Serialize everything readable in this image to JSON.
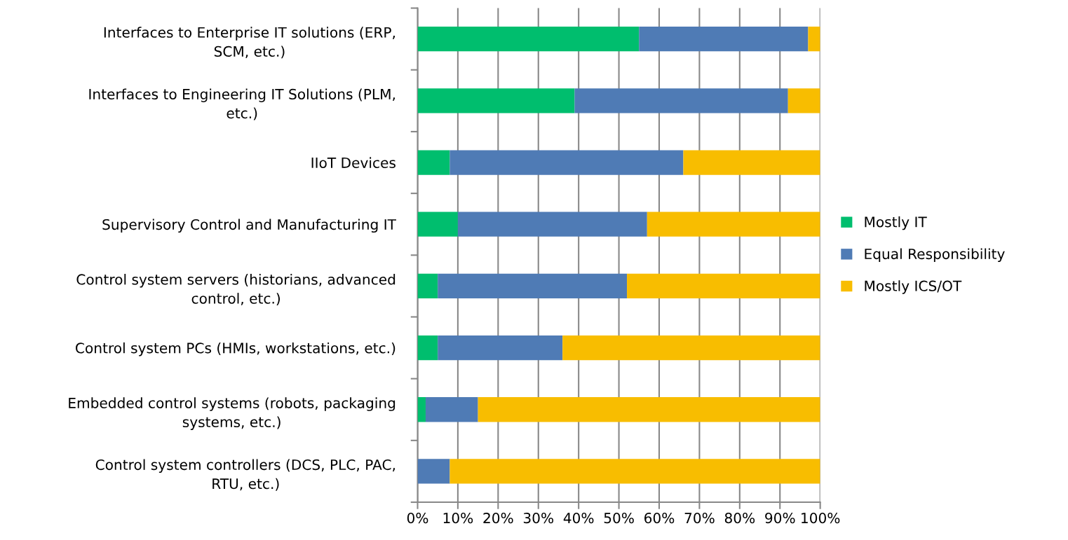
{
  "chart_data": {
    "type": "bar",
    "orientation": "horizontal",
    "stacked": true,
    "categories": [
      "Interfaces to Enterprise IT solutions (ERP,\nSCM, etc.)",
      "Interfaces to Engineering IT Solutions (PLM,\netc.)",
      "IIoT Devices",
      "Supervisory Control and Manufacturing IT",
      "Control system servers (historians, advanced\ncontrol, etc.)",
      "Control system PCs (HMIs, workstations, etc.)",
      "Embedded control systems (robots, packaging\nsystems, etc.)",
      "Control system controllers (DCS, PLC, PAC,\nRTU, etc.)"
    ],
    "series": [
      {
        "name": "Mostly IT",
        "color": "#00be6e",
        "values": [
          55,
          39,
          8,
          10,
          5,
          5,
          2,
          0
        ]
      },
      {
        "name": "Equal Responsibility",
        "color": "#4f7bb5",
        "values": [
          42,
          53,
          58,
          47,
          47,
          31,
          13,
          8
        ]
      },
      {
        "name": "Mostly ICS/OT",
        "color": "#f8bd00",
        "values": [
          3,
          8,
          34,
          43,
          48,
          64,
          85,
          92
        ]
      }
    ],
    "xlim": [
      0,
      100
    ],
    "xticks": [
      {
        "value": 0,
        "label": "0%"
      },
      {
        "value": 10,
        "label": "10%"
      },
      {
        "value": 20,
        "label": "20%"
      },
      {
        "value": 30,
        "label": "30%"
      },
      {
        "value": 40,
        "label": "40%"
      },
      {
        "value": 50,
        "label": "50%"
      },
      {
        "value": 60,
        "label": "60%"
      },
      {
        "value": 70,
        "label": "70%"
      },
      {
        "value": 80,
        "label": "80%"
      },
      {
        "value": 90,
        "label": "90%"
      },
      {
        "value": 100,
        "label": "100%"
      }
    ],
    "grid": "x",
    "legend": "right"
  }
}
